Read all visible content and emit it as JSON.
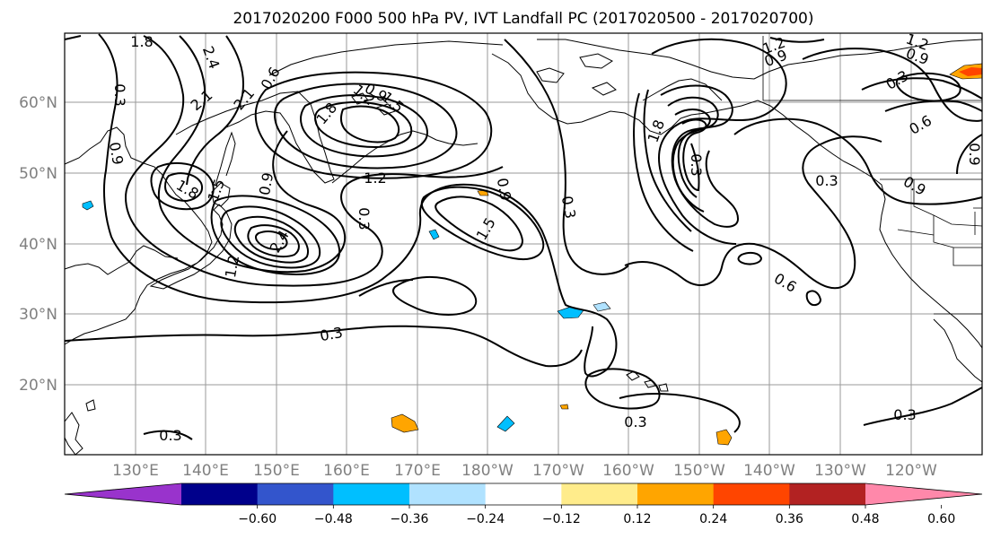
{
  "title": "2017020200 F000 500 hPa PV, IVT Landfall PC (2017020500 - 2017020700)",
  "lat_labels": [
    "60°N",
    "50°N",
    "40°N",
    "30°N",
    "20°N"
  ],
  "lon_labels": [
    "130°E",
    "140°E",
    "150°E",
    "160°E",
    "170°E",
    "180°W",
    "170°W",
    "160°W",
    "150°W",
    "140°W",
    "130°W",
    "120°W"
  ],
  "colorbar": {
    "ticks": [
      "−0.60",
      "−0.48",
      "−0.36",
      "−0.24",
      "−0.12",
      "0.12",
      "0.24",
      "0.36",
      "0.48",
      "0.60"
    ],
    "colors": [
      "#9933cc",
      "#00008b",
      "#3355cc",
      "#00bfff",
      "#b0e2ff",
      "#ffffff",
      "#ffec8b",
      "#ffa500",
      "#ff4500",
      "#b22222",
      "#ff88aa"
    ]
  },
  "contour_labels": [
    {
      "id": "l1",
      "text": "1.8"
    },
    {
      "id": "l2",
      "text": "2.4"
    },
    {
      "id": "l3",
      "text": "0.3"
    },
    {
      "id": "l4",
      "text": "2.1"
    },
    {
      "id": "l5",
      "text": "0.6"
    },
    {
      "id": "l6",
      "text": "0.9"
    },
    {
      "id": "l7",
      "text": "1.8"
    },
    {
      "id": "l8",
      "text": "1.5"
    },
    {
      "id": "l9",
      "text": "2.1"
    },
    {
      "id": "l10",
      "text": "1.2"
    },
    {
      "id": "l11",
      "text": "0.3"
    },
    {
      "id": "l12",
      "text": "1.8"
    },
    {
      "id": "l13",
      "text": "0.9"
    },
    {
      "id": "l14",
      "text": "2.4"
    },
    {
      "id": "l15",
      "text": "1.2"
    },
    {
      "id": "l16",
      "text": "0.9"
    },
    {
      "id": "l17",
      "text": "1.2"
    },
    {
      "id": "l18",
      "text": "1.5"
    },
    {
      "id": "l19",
      "text": "0.3"
    },
    {
      "id": "l20",
      "text": "0.9"
    },
    {
      "id": "l21",
      "text": "0.3"
    },
    {
      "id": "l22",
      "text": "1.5"
    },
    {
      "id": "l23",
      "text": "1.8"
    },
    {
      "id": "l24",
      "text": "0.6"
    },
    {
      "id": "l25",
      "text": "0.3"
    },
    {
      "id": "l26",
      "text": "0.3"
    },
    {
      "id": "l27",
      "text": "1.2"
    },
    {
      "id": "l28",
      "text": "0.9"
    },
    {
      "id": "l29",
      "text": "1.2"
    },
    {
      "id": "l30",
      "text": "0.9"
    },
    {
      "id": "l31",
      "text": "0.3"
    },
    {
      "id": "l32",
      "text": "0.6"
    },
    {
      "id": "l33",
      "text": "0.9"
    },
    {
      "id": "l34",
      "text": "0.9"
    },
    {
      "id": "l35",
      "text": "0.3"
    },
    {
      "id": "l36",
      "text": "0.3"
    },
    {
      "id": "l37",
      "text": "0.3"
    }
  ]
}
